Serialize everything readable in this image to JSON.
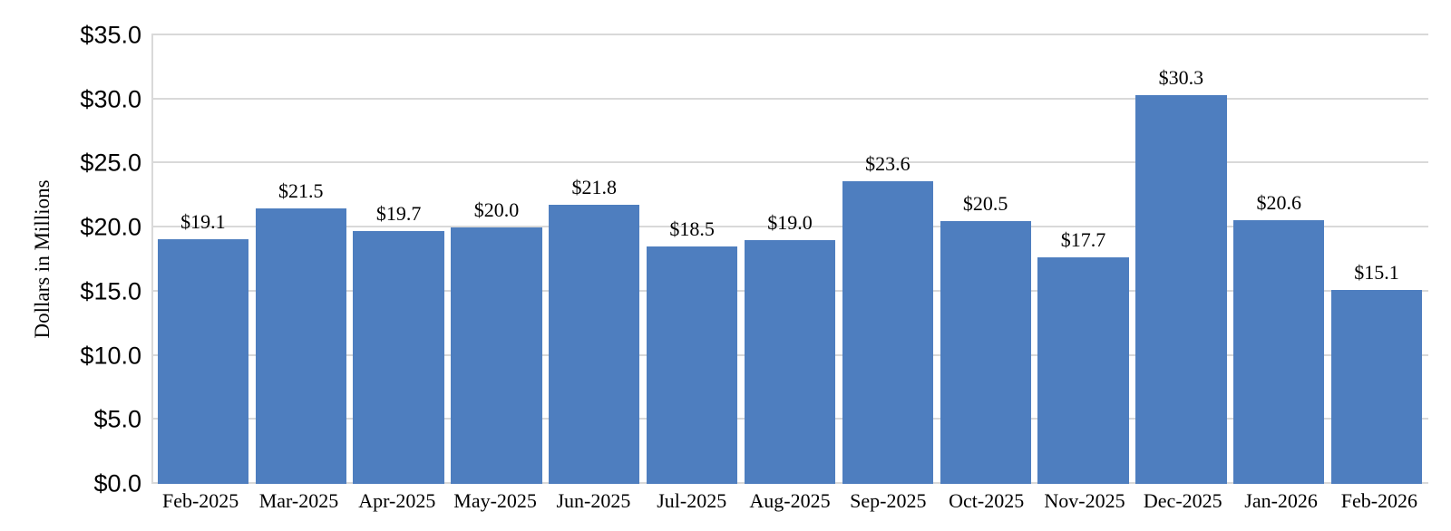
{
  "chart_data": {
    "type": "bar",
    "title": "",
    "xlabel": "",
    "ylabel": "Dollars in Millions",
    "categories": [
      "Feb-2025",
      "Mar-2025",
      "Apr-2025",
      "May-2025",
      "Jun-2025",
      "Jul-2025",
      "Aug-2025",
      "Sep-2025",
      "Oct-2025",
      "Nov-2025",
      "Dec-2025",
      "Jan-2026",
      "Feb-2026"
    ],
    "values": [
      19.1,
      21.5,
      19.7,
      20.0,
      21.8,
      18.5,
      19.0,
      23.6,
      20.5,
      17.7,
      30.3,
      20.6,
      15.1
    ],
    "data_labels": [
      "$19.1",
      "$21.5",
      "$19.7",
      "$20.0",
      "$21.8",
      "$18.5",
      "$19.0",
      "$23.6",
      "$20.5",
      "$17.7",
      "$30.3",
      "$20.6",
      "$15.1"
    ],
    "y_ticks": [
      {
        "value": 0,
        "label": "$0.0"
      },
      {
        "value": 5,
        "label": "$5.0"
      },
      {
        "value": 10,
        "label": "$10.0"
      },
      {
        "value": 15,
        "label": "$15.0"
      },
      {
        "value": 20,
        "label": "$20.0"
      },
      {
        "value": 25,
        "label": "$25.0"
      },
      {
        "value": 30,
        "label": "$30.0"
      },
      {
        "value": 35,
        "label": "$35.0"
      }
    ],
    "ylim": [
      0,
      35
    ],
    "grid": true,
    "legend": "none",
    "colors": {
      "bar": "#4e7ebf",
      "gridline": "#d9d9d9",
      "axis_line": "#d9d9d9",
      "text": "#000000",
      "background": "#ffffff"
    }
  }
}
